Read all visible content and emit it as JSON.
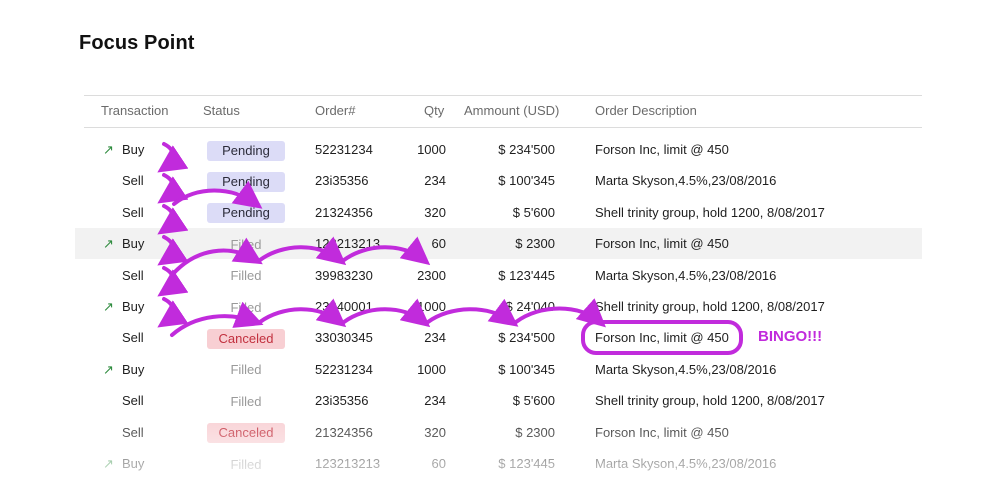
{
  "page": {
    "title": "Focus Point"
  },
  "table": {
    "headers": {
      "transaction": "Transaction",
      "status": "Status",
      "order": "Order#",
      "qty": "Qty",
      "amount": "Ammount (USD)",
      "description": "Order Description"
    },
    "rows": [
      {
        "type": "Buy",
        "arrow": true,
        "status": "Pending",
        "status_kind": "pending",
        "order": "52231234",
        "qty": "1000",
        "amount": "$ 234'500",
        "description": "Forson Inc, limit @ 450"
      },
      {
        "type": "Sell",
        "arrow": false,
        "status": "Pending",
        "status_kind": "pending",
        "order": "23i35356",
        "qty": "234",
        "amount": "$ 100'345",
        "description": "Marta Skyson,4.5%,23/08/2016"
      },
      {
        "type": "Sell",
        "arrow": false,
        "status": "Pending",
        "status_kind": "pending",
        "order": "21324356",
        "qty": "320",
        "amount": "$ 5'600",
        "description": "Shell trinity group, hold 1200, 8/08/2017"
      },
      {
        "type": "Buy",
        "arrow": true,
        "status": "Filled",
        "status_kind": "filled",
        "order": "123213213",
        "qty": "60",
        "amount": "$ 2300",
        "description": "Forson Inc, limit @ 450",
        "highlighted": true
      },
      {
        "type": "Sell",
        "arrow": false,
        "status": "Filled",
        "status_kind": "filled",
        "order": "39983230",
        "qty": "2300",
        "amount": "$ 123'445",
        "description": "Marta Skyson,4.5%,23/08/2016"
      },
      {
        "type": "Buy",
        "arrow": true,
        "status": "Filled",
        "status_kind": "filled",
        "order": "23340001",
        "qty": "1000",
        "amount": "$ 24'040",
        "description": "Shell trinity group, hold 1200, 8/08/2017"
      },
      {
        "type": "Sell",
        "arrow": false,
        "status": "Canceled",
        "status_kind": "canceled",
        "order": "33030345",
        "qty": "234",
        "amount": "$ 234'500",
        "description": "Forson Inc, limit @ 450",
        "circled": true
      },
      {
        "type": "Buy",
        "arrow": true,
        "status": "Filled",
        "status_kind": "filled",
        "order": "52231234",
        "qty": "1000",
        "amount": "$ 100'345",
        "description": "Marta Skyson,4.5%,23/08/2016"
      },
      {
        "type": "Sell",
        "arrow": false,
        "status": "Filled",
        "status_kind": "filled",
        "order": "23i35356",
        "qty": "234",
        "amount": "$ 5'600",
        "description": "Shell trinity group, hold 1200, 8/08/2017"
      },
      {
        "type": "Sell",
        "arrow": false,
        "status": "Canceled",
        "status_kind": "canceled",
        "order": "21324356",
        "qty": "320",
        "amount": "$ 2300",
        "description": "Forson Inc, limit @ 450"
      },
      {
        "type": "Buy",
        "arrow": true,
        "status": "Filled",
        "status_kind": "filled",
        "order": "123213213",
        "qty": "60",
        "amount": "$ 123'445",
        "description": "Marta Skyson,4.5%,23/08/2016"
      }
    ]
  },
  "annotation": {
    "bingo": "BINGO!!!",
    "color": "#c12bdc"
  },
  "colors": {
    "buy_arrow": "#2e8b3e",
    "pending_bg": "#dcdcf7",
    "canceled_bg": "#f8cfd3",
    "canceled_text": "#c2313f",
    "filled_text": "#9a9a9a",
    "highlight_row": "#f2f2f2"
  },
  "icons": {
    "buy": "arrow-up-right-icon"
  }
}
